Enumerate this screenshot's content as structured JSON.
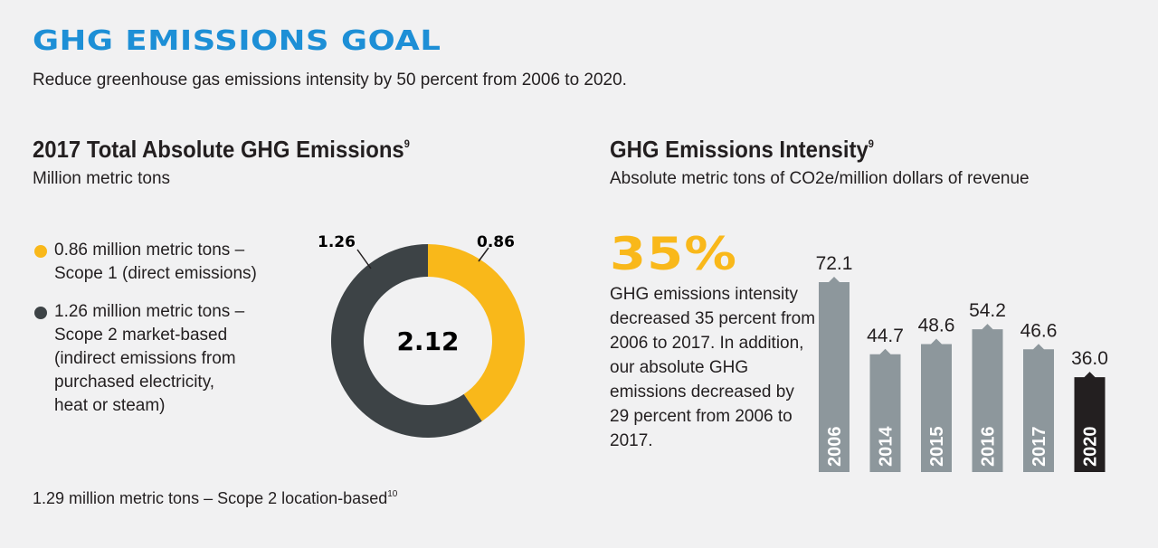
{
  "header": {
    "title": "GHG EMISSIONS GOAL",
    "subtitle": "Reduce greenhouse gas emissions intensity by 50 percent from 2006 to 2020."
  },
  "left": {
    "title": "2017 Total Absolute GHG Emissions",
    "title_sup": "9",
    "subtitle": "Million metric tons",
    "legend": [
      {
        "text_lines": [
          "0.86 million metric tons –",
          "Scope 1 (direct emissions)"
        ],
        "color": "#f9b81a"
      },
      {
        "text_lines": [
          "1.26 million metric tons –",
          "Scope 2 market-based",
          "(indirect emissions from",
          "purchased electricity,",
          "heat or steam)"
        ],
        "color": "#3d4346"
      }
    ],
    "footnote": "1.29 million metric tons – Scope 2 location-based",
    "footnote_sup": "10"
  },
  "right": {
    "title": "GHG Emissions Intensity",
    "title_sup": "9",
    "subtitle": "Absolute metric tons of CO2e/million dollars of revenue",
    "highlight_value": "35%",
    "highlight_text": "GHG emissions intensity decreased 35 percent from 2006 to 2017. In addition, our absolute GHG emissions decreased by 29 percent from 2006 to 2017."
  },
  "chart_data": [
    {
      "type": "pie",
      "variant": "donut",
      "center_label": "2.12",
      "slices": [
        {
          "label": "0.86",
          "value": 0.86,
          "color": "#f9b81a"
        },
        {
          "label": "1.26",
          "value": 1.26,
          "color": "#3d4346"
        }
      ]
    },
    {
      "type": "bar",
      "categories": [
        "2006",
        "2014",
        "2015",
        "2016",
        "2017",
        "2020"
      ],
      "values": [
        72.1,
        44.7,
        48.6,
        54.2,
        46.6,
        36.0
      ],
      "value_labels": [
        "72.1",
        "44.7",
        "48.6",
        "54.2",
        "46.6",
        "36.0"
      ],
      "colors": [
        "#8d979c",
        "#8d979c",
        "#8d979c",
        "#8d979c",
        "#8d979c",
        "#231f20"
      ],
      "ylim": [
        0,
        72.1
      ]
    }
  ]
}
